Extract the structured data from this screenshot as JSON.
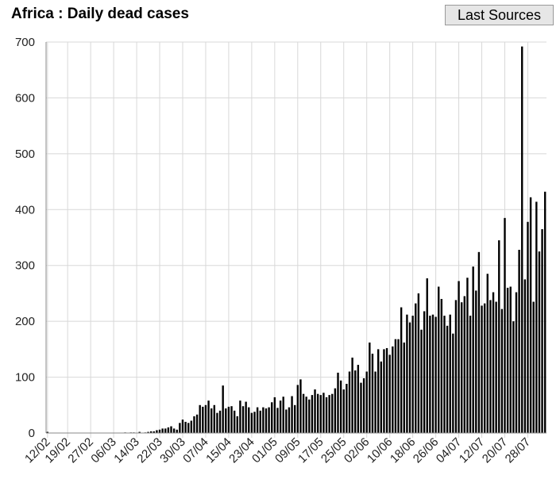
{
  "header": {
    "title": "Africa : Daily dead cases",
    "sources_button": "Last Sources"
  },
  "colors": {
    "bar": "#000000",
    "grid": "#d8d8d8",
    "axis": "#888888"
  },
  "chart_data": {
    "type": "bar",
    "title": "Africa : Daily dead cases",
    "xlabel": "",
    "ylabel": "",
    "ylim": [
      0,
      700
    ],
    "y_ticks": [
      0,
      100,
      200,
      300,
      400,
      500,
      600,
      700
    ],
    "grid": true,
    "start_date": "12/02",
    "x_tick_labels": [
      "12/02",
      "19/02",
      "27/02",
      "06/03",
      "14/03",
      "22/03",
      "30/03",
      "07/04",
      "15/04",
      "23/04",
      "01/05",
      "09/05",
      "17/05",
      "25/05",
      "02/06",
      "10/06",
      "18/06",
      "26/06",
      "04/07",
      "12/07",
      "20/07",
      "28/07"
    ],
    "x_tick_day_index": [
      0,
      7,
      15,
      23,
      31,
      39,
      47,
      55,
      63,
      71,
      79,
      87,
      95,
      103,
      111,
      119,
      127,
      135,
      143,
      151,
      159,
      167
    ],
    "values": [
      2,
      0,
      0,
      0,
      0,
      0,
      0,
      0,
      0,
      0,
      0,
      0,
      0,
      0,
      0,
      0,
      0,
      0,
      0,
      0,
      0,
      0,
      0,
      0,
      0,
      0,
      0,
      1,
      0,
      1,
      1,
      0,
      2,
      0,
      1,
      2,
      3,
      3,
      5,
      6,
      8,
      8,
      10,
      12,
      8,
      6,
      18,
      24,
      20,
      18,
      22,
      30,
      33,
      50,
      47,
      50,
      58,
      44,
      50,
      36,
      40,
      85,
      44,
      47,
      48,
      40,
      30,
      58,
      48,
      56,
      46,
      36,
      38,
      46,
      40,
      46,
      44,
      46,
      55,
      64,
      45,
      58,
      65,
      42,
      46,
      66,
      50,
      86,
      96,
      70,
      65,
      60,
      68,
      78,
      70,
      68,
      72,
      64,
      68,
      70,
      80,
      108,
      94,
      78,
      88,
      110,
      135,
      112,
      122,
      90,
      98,
      110,
      162,
      142,
      110,
      150,
      128,
      150,
      152,
      140,
      155,
      168,
      168,
      225,
      162,
      212,
      198,
      210,
      232,
      250,
      185,
      218,
      277,
      210,
      212,
      208,
      262,
      240,
      210,
      192,
      212,
      178,
      238,
      272,
      234,
      245,
      278,
      210,
      298,
      255,
      324,
      228,
      232,
      285,
      238,
      252,
      235,
      345,
      222,
      385,
      260,
      262,
      200,
      252,
      328,
      692,
      275,
      378,
      422,
      235,
      414,
      325,
      365,
      432
    ]
  }
}
